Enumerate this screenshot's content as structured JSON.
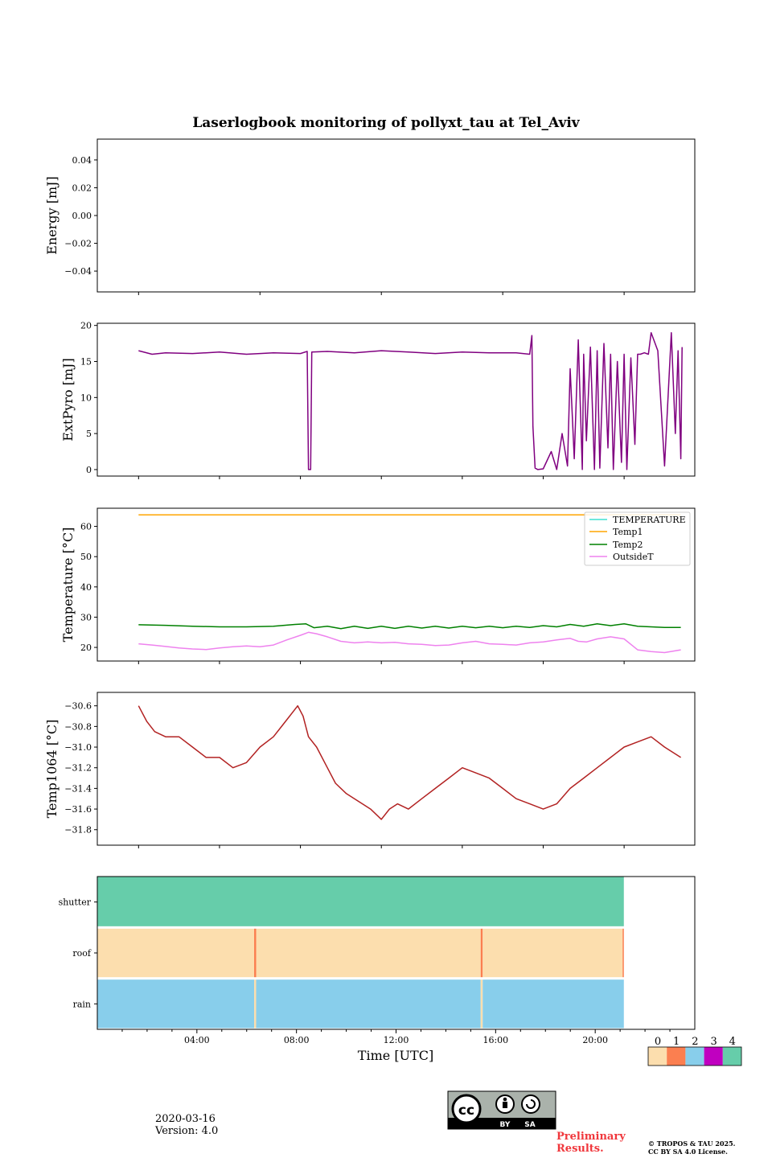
{
  "title": "Laserlogbook monitoring of pollyxt_tau at Tel_Aviv",
  "footer": {
    "date": "2020-03-16",
    "version": "Version: 4.0",
    "preliminary": [
      "Preliminary",
      "Results."
    ],
    "copyright": [
      "© TROPOS & TAU 2025.",
      "CC BY SA 4.0 License."
    ],
    "license_badge": {
      "by": "BY",
      "sa": "SA"
    }
  },
  "colors": {
    "extpyro": "#800080",
    "temperature": "#40e0d0",
    "temp1": "#ffa500",
    "temp2": "#008000",
    "outsideT": "#ee82ee",
    "temp1064": "#b22222",
    "status": [
      "#fcdeae",
      "#fb7f50",
      "#88ceeb",
      "#c000c0",
      "#66cdaa"
    ]
  },
  "chart_data": [
    {
      "type": "line",
      "name": "energy",
      "ylabel": "Energy [mJ]",
      "ylim": [
        -0.055,
        0.055
      ],
      "yticks": [
        -0.04,
        -0.02,
        0.0,
        0.02,
        0.04
      ],
      "ytick_labels": [
        "−0.04",
        "−0.02",
        "0.00",
        "0.02",
        "0.04"
      ],
      "series": []
    },
    {
      "type": "line",
      "name": "extpyro",
      "ylabel": "ExtPyro [mJ]",
      "ylim": [
        -0.9,
        20.3
      ],
      "yticks": [
        0,
        5,
        10,
        15,
        20
      ],
      "ytick_labels": [
        "0",
        "5",
        "10",
        "15",
        "20"
      ],
      "series": [
        {
          "color": "#800080",
          "x": [
            1.0,
            1.5,
            2.0,
            3.0,
            4.0,
            5.0,
            6.0,
            7.0,
            7.25,
            7.3,
            7.38,
            7.42,
            8.0,
            9.0,
            10.0,
            11.0,
            12.0,
            13.0,
            14.0,
            15.0,
            15.5,
            15.58,
            15.62,
            15.7,
            15.8,
            16.0,
            16.3,
            16.5,
            16.7,
            16.9,
            17.0,
            17.15,
            17.3,
            17.45,
            17.5,
            17.6,
            17.75,
            17.9,
            18.0,
            18.1,
            18.25,
            18.4,
            18.5,
            18.6,
            18.75,
            18.9,
            19.0,
            19.1,
            19.25,
            19.4,
            19.5,
            19.6,
            19.75,
            19.9,
            20.0,
            20.25,
            20.5,
            20.75,
            20.9,
            21.0,
            21.1,
            21.15
          ],
          "y": [
            16.5,
            16.0,
            16.2,
            16.1,
            16.3,
            16.0,
            16.2,
            16.1,
            16.4,
            0.0,
            0.0,
            16.3,
            16.4,
            16.2,
            16.5,
            16.3,
            16.1,
            16.3,
            16.2,
            16.2,
            16.0,
            18.6,
            6.0,
            0.2,
            0.0,
            0.1,
            2.5,
            0.0,
            5.0,
            0.5,
            14.0,
            1.5,
            18.0,
            0.0,
            16.0,
            4.0,
            17.0,
            0.0,
            16.5,
            0.2,
            17.5,
            3.0,
            16.0,
            0.0,
            15.0,
            1.0,
            16.0,
            0.0,
            15.5,
            3.5,
            16.0,
            16.0,
            16.2,
            16.0,
            19.0,
            16.5,
            0.5,
            19.0,
            5.0,
            16.5,
            1.5,
            17.0
          ]
        }
      ]
    },
    {
      "type": "line",
      "name": "temperature",
      "ylabel": "Temperature [°C]",
      "ylim": [
        15.5,
        66.0
      ],
      "yticks": [
        20,
        30,
        40,
        50,
        60
      ],
      "ytick_labels": [
        "20",
        "30",
        "40",
        "50",
        "60"
      ],
      "legend": [
        "TEMPERATURE",
        "Temp1",
        "Temp2",
        "OutsideT"
      ],
      "legend_placement": "top-right",
      "series": [
        {
          "name": "TEMPERATURE",
          "color": "#40e0d0",
          "x": [],
          "y": []
        },
        {
          "name": "Temp1",
          "color": "#ffa500",
          "x": [
            1.0,
            21.1
          ],
          "y": [
            63.8,
            63.8
          ]
        },
        {
          "name": "Temp2",
          "color": "#008000",
          "x": [
            1.0,
            2.0,
            3.0,
            4.0,
            5.0,
            6.0,
            6.8,
            7.2,
            7.5,
            8.0,
            8.5,
            9.0,
            9.5,
            10.0,
            10.5,
            11.0,
            11.5,
            12.0,
            12.5,
            13.0,
            13.5,
            14.0,
            14.5,
            15.0,
            15.5,
            16.0,
            16.5,
            17.0,
            17.5,
            18.0,
            18.5,
            19.0,
            19.5,
            20.0,
            20.5,
            21.1
          ],
          "y": [
            27.5,
            27.3,
            27.0,
            26.8,
            26.8,
            27.0,
            27.6,
            27.8,
            26.5,
            27.0,
            26.2,
            27.0,
            26.3,
            27.0,
            26.3,
            27.0,
            26.4,
            27.0,
            26.4,
            27.0,
            26.5,
            27.0,
            26.5,
            27.0,
            26.6,
            27.2,
            26.8,
            27.6,
            27.0,
            27.8,
            27.2,
            27.8,
            27.0,
            26.8,
            26.6,
            26.6
          ]
        },
        {
          "name": "OutsideT",
          "color": "#ee82ee",
          "x": [
            1.0,
            1.5,
            2.0,
            2.5,
            3.0,
            3.5,
            4.0,
            4.5,
            5.0,
            5.5,
            6.0,
            6.5,
            7.0,
            7.3,
            7.6,
            8.0,
            8.5,
            9.0,
            9.5,
            10.0,
            10.5,
            11.0,
            11.5,
            12.0,
            12.5,
            13.0,
            13.5,
            14.0,
            14.5,
            15.0,
            15.5,
            16.0,
            16.5,
            17.0,
            17.3,
            17.6,
            18.0,
            18.5,
            19.0,
            19.5,
            20.0,
            20.5,
            21.1
          ],
          "y": [
            21.2,
            20.8,
            20.3,
            19.8,
            19.5,
            19.3,
            19.8,
            20.2,
            20.5,
            20.2,
            20.8,
            22.5,
            24.0,
            25.0,
            24.5,
            23.5,
            22.0,
            21.5,
            21.8,
            21.5,
            21.7,
            21.2,
            21.0,
            20.6,
            20.8,
            21.5,
            22.0,
            21.2,
            21.0,
            20.8,
            21.5,
            21.8,
            22.5,
            23.0,
            22.0,
            21.8,
            22.8,
            23.5,
            22.8,
            19.2,
            18.6,
            18.3,
            19.2
          ]
        }
      ]
    },
    {
      "type": "line",
      "name": "temp1064",
      "ylabel": "Temp1064 [°C]",
      "ylim": [
        -31.95,
        -30.47
      ],
      "yticks": [
        -31.8,
        -31.6,
        -31.4,
        -31.2,
        -31.0,
        -30.8,
        -30.6
      ],
      "ytick_labels": [
        "−31.8",
        "−31.6",
        "−31.4",
        "−31.2",
        "−31.0",
        "−30.8",
        "−30.6"
      ],
      "series": [
        {
          "color": "#b22222",
          "x": [
            1.0,
            1.3,
            1.6,
            2.0,
            2.5,
            3.0,
            3.5,
            4.0,
            4.5,
            5.0,
            5.5,
            6.0,
            6.3,
            6.6,
            6.9,
            7.1,
            7.3,
            7.6,
            8.0,
            8.3,
            8.7,
            9.0,
            9.3,
            9.6,
            10.0,
            10.3,
            10.6,
            11.0,
            11.5,
            12.0,
            12.5,
            13.0,
            13.5,
            14.0,
            14.5,
            15.0,
            15.5,
            16.0,
            16.5,
            17.0,
            17.5,
            18.0,
            18.5,
            19.0,
            19.5,
            20.0,
            20.5,
            21.1
          ],
          "y": [
            -30.6,
            -30.75,
            -30.85,
            -30.9,
            -30.9,
            -31.0,
            -31.1,
            -31.1,
            -31.2,
            -31.15,
            -31.0,
            -30.9,
            -30.8,
            -30.7,
            -30.6,
            -30.7,
            -30.9,
            -31.0,
            -31.2,
            -31.35,
            -31.45,
            -31.5,
            -31.55,
            -31.6,
            -31.7,
            -31.6,
            -31.55,
            -31.6,
            -31.5,
            -31.4,
            -31.3,
            -31.2,
            -31.25,
            -31.3,
            -31.4,
            -31.5,
            -31.55,
            -31.6,
            -31.55,
            -31.4,
            -31.3,
            -31.2,
            -31.1,
            -31.0,
            -30.95,
            -30.9,
            -31.0,
            -31.1
          ]
        }
      ]
    },
    {
      "type": "heatmap",
      "name": "status",
      "rows": [
        "shutter",
        "roof",
        "rain"
      ],
      "xlabel": "Time [UTC]",
      "xlim": [
        0.0,
        24.0
      ],
      "xticks": [
        4,
        8,
        12,
        16,
        20
      ],
      "xtick_labels": [
        "04:00",
        "08:00",
        "12:00",
        "16:00",
        "20:00"
      ],
      "segments": {
        "shutter": [
          {
            "from": 0.0,
            "to": 21.15,
            "value": 4
          }
        ],
        "roof": [
          {
            "from": 0.0,
            "to": 6.3,
            "value": 0
          },
          {
            "from": 6.3,
            "to": 6.38,
            "value": 1
          },
          {
            "from": 6.38,
            "to": 15.4,
            "value": 0
          },
          {
            "from": 15.4,
            "to": 15.48,
            "value": 1
          },
          {
            "from": 15.48,
            "to": 21.1,
            "value": 0
          },
          {
            "from": 21.1,
            "to": 21.15,
            "value": 1
          }
        ],
        "rain": [
          {
            "from": 0.0,
            "to": 6.3,
            "value": 2
          },
          {
            "from": 6.3,
            "to": 6.38,
            "value": 0
          },
          {
            "from": 6.38,
            "to": 15.4,
            "value": 2
          },
          {
            "from": 15.4,
            "to": 15.48,
            "value": 0
          },
          {
            "from": 15.48,
            "to": 21.15,
            "value": 2
          }
        ]
      },
      "colorbar": {
        "labels": [
          "0",
          "1",
          "2",
          "3",
          "4"
        ]
      }
    }
  ]
}
